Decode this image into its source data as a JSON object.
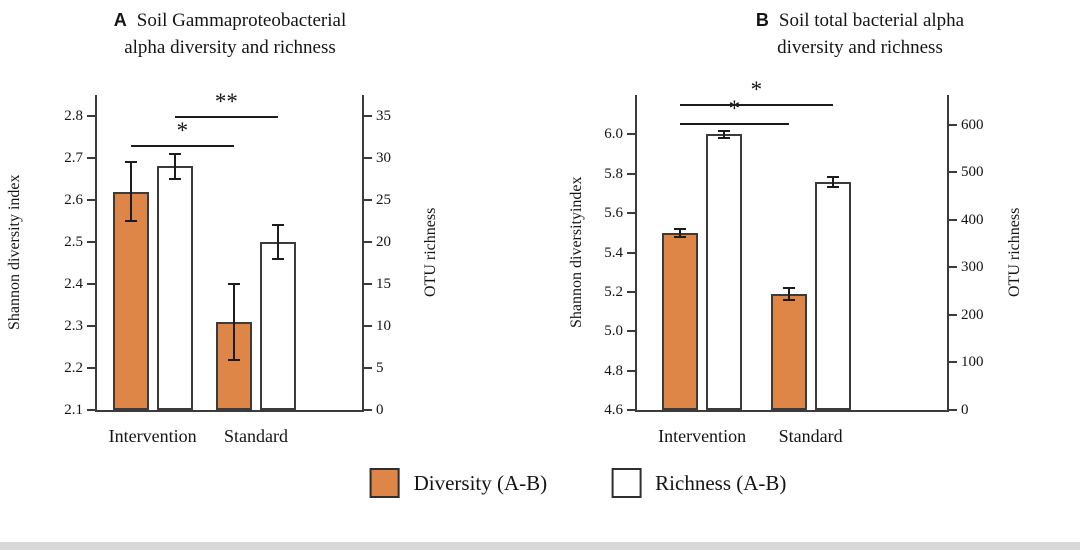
{
  "page": {
    "background": "#ffffff",
    "axis_color": "#3b3b3b",
    "footer_strip_color": "#d8d8d8"
  },
  "legend": {
    "items": [
      {
        "label": "Diversity (A-B)",
        "color": "#DE8648"
      },
      {
        "label": "Richness (A-B)",
        "color": "#FFFFFF"
      }
    ]
  },
  "chart_data": [
    {
      "type": "bar",
      "panel_label": "A",
      "title_lines": [
        "Soil Gammaproteobacterial",
        "alpha diversity and richness"
      ],
      "left_axis": {
        "label": "Shannon diversity index",
        "min": 2.1,
        "max": 2.85,
        "ticks": [
          "2.1",
          "2.2",
          "2.3",
          "2.4",
          "2.5",
          "2.6",
          "2.7",
          "2.8"
        ]
      },
      "right_axis": {
        "label": "OTU richness",
        "min": 0,
        "max": 37.5,
        "ticks": [
          "0",
          "5",
          "10",
          "15",
          "20",
          "25",
          "30",
          "35"
        ]
      },
      "categories": [
        "Intervention",
        "Standard"
      ],
      "series": [
        {
          "name": "Diversity (A-B)",
          "axis": "left",
          "color": "#DE8648",
          "values": [
            2.62,
            2.31
          ],
          "errors": [
            0.07,
            0.09
          ]
        },
        {
          "name": "Richness (A-B)",
          "axis": "right",
          "color": "#FFFFFF",
          "values": [
            29,
            20
          ],
          "errors": [
            1.5,
            2
          ]
        }
      ],
      "significance": [
        {
          "label": "*",
          "from": [
            0,
            0
          ],
          "to": [
            1,
            0
          ],
          "y": 2.73
        },
        {
          "label": "**",
          "from": [
            0,
            1
          ],
          "to": [
            1,
            1
          ],
          "y": 2.8
        }
      ],
      "group_fracs": [
        0.21,
        0.6
      ],
      "grid": false
    },
    {
      "type": "bar",
      "panel_label": "B",
      "title_lines": [
        "Soil total bacterial alpha",
        "diversity and richness"
      ],
      "left_axis": {
        "label": "Shannon diversityindex",
        "min": 4.6,
        "max": 6.2,
        "ticks": [
          "4.6",
          "4.8",
          "5.0",
          "5.2",
          "5.4",
          "5.6",
          "5.8",
          "6.0"
        ]
      },
      "right_axis": {
        "label": "OTU richness",
        "min": 0,
        "max": 663,
        "ticks": [
          "0",
          "100",
          "200",
          "300",
          "400",
          "500",
          "600"
        ]
      },
      "categories": [
        "Intervention",
        "Standard"
      ],
      "series": [
        {
          "name": "Diversity (A-B)",
          "axis": "left",
          "color": "#DE8648",
          "values": [
            5.5,
            5.19
          ],
          "errors": [
            0.02,
            0.03
          ]
        },
        {
          "name": "Richness (A-B)",
          "axis": "right",
          "color": "#FFFFFF",
          "values": [
            580,
            480
          ],
          "errors": [
            8,
            10
          ]
        }
      ],
      "significance": [
        {
          "label": "*",
          "from": [
            0,
            0
          ],
          "to": [
            1,
            0
          ],
          "y": 6.06
        },
        {
          "label": "*",
          "from": [
            0,
            0
          ],
          "to": [
            1,
            1
          ],
          "y": 6.155
        }
      ],
      "group_fracs": [
        0.21,
        0.56
      ],
      "grid": false
    }
  ]
}
